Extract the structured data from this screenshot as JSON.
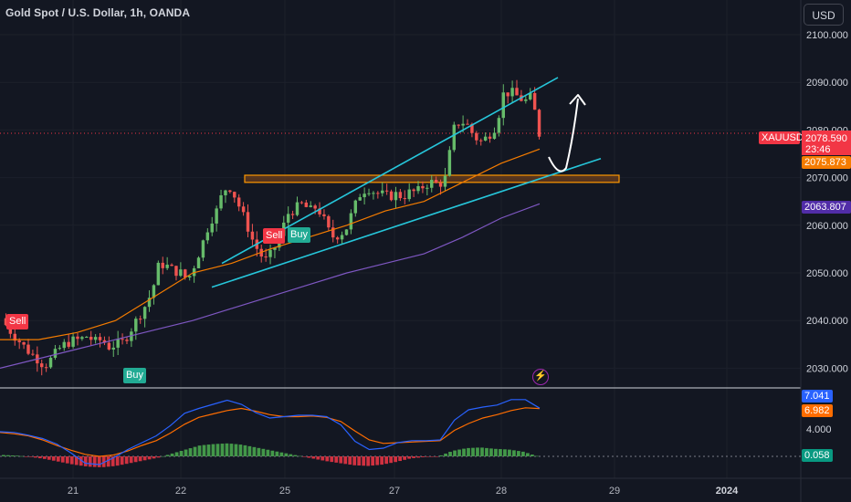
{
  "header": {
    "title": "Gold Spot / U.S. Dollar, 1h, OANDA",
    "currency_button": "USD"
  },
  "colors": {
    "background": "#131722",
    "up": "#66bb6a",
    "down": "#ef5350",
    "channel": "#26c6da",
    "zone_fill": "#8a4a1a",
    "zone_border": "#ff9800",
    "ema_fast": "#f57c00",
    "ema_slow": "#7e57c2",
    "macd_line": "#2962ff",
    "signal_line": "#ff6d00",
    "hist_up": "#4caf50",
    "hist_down": "#f23645"
  },
  "signals": [
    {
      "label": "Sell",
      "type": "sell"
    },
    {
      "label": "Buy",
      "type": "buy"
    },
    {
      "label": "Sell",
      "type": "sell"
    },
    {
      "label": "Buy",
      "type": "buy"
    }
  ],
  "chart_data": [
    {
      "type": "candlestick",
      "title": "Gold Spot / U.S. Dollar, 1h, OANDA",
      "symbol": "XAUUSD",
      "x_ticks": [
        "21",
        "22",
        "25",
        "27",
        "28",
        "29",
        "2024"
      ],
      "y_ticks": [
        "2100.000",
        "2090.000",
        "2080.000",
        "2070.000",
        "2060.000",
        "2050.000",
        "2040.000",
        "2030.000"
      ],
      "ylim": [
        2025.5,
        2105
      ],
      "last_price": "2078.590",
      "countdown": "23:46",
      "ema_fast_value": "2075.873",
      "ema_slow_value": "2063.807",
      "close_points": [
        2040.5,
        2038.2,
        2036.5,
        2034.8,
        2033.2,
        2032.0,
        2030.5,
        2032.0,
        2034.0,
        2035.2,
        2035.8,
        2036.0,
        2036.8,
        2035.5,
        2036.0,
        2034.5,
        2035.0,
        2035.5,
        2038.0,
        2040.5,
        2043.0,
        2046.0,
        2052.0,
        2051.5,
        2050.5,
        2050.0,
        2048.5,
        2052.0,
        2056.0,
        2060.5,
        2063.0,
        2067.5,
        2068.0,
        2064.5,
        2061.0,
        2057.0,
        2054.0,
        2052.5,
        2055.0,
        2058.5,
        2062.5,
        2063.5,
        2064.5,
        2063.0,
        2064.0,
        2061.0,
        2057.5,
        2058.0,
        2059.0,
        2063.0,
        2066.5,
        2068.0,
        2067.0,
        2066.5,
        2066.0,
        2066.5,
        2066.0,
        2067.0,
        2067.0,
        2068.5,
        2069.0,
        2068.5,
        2070.0,
        2080.0,
        2082.0,
        2081.0,
        2078.5,
        2077.5,
        2079.0,
        2081.0,
        2087.5,
        2088.0,
        2087.0,
        2086.0,
        2087.0,
        2078.6
      ],
      "ema_fast": [
        2036.0,
        2036.0,
        2037.5,
        2040.0,
        2045.0,
        2050.0,
        2052.0,
        2055.0,
        2057.5,
        2060.0,
        2063.0,
        2065.0,
        2069.0,
        2073.0,
        2076.0
      ],
      "ema_slow": [
        2030.0,
        2032.0,
        2034.0,
        2036.0,
        2038.0,
        2040.0,
        2042.5,
        2045.0,
        2047.5,
        2050.0,
        2052.0,
        2054.0,
        2057.5,
        2061.5,
        2064.5
      ],
      "channel_upper": [
        [
          2052.0,
          2091.0
        ]
      ],
      "channel_lower": [
        [
          2047.0,
          2074.0
        ]
      ],
      "zone": [
        2069.0,
        2070.5
      ],
      "projection": "drop to channel support then rise toward 2089"
    },
    {
      "type": "macd",
      "macd_value": "7.041",
      "signal_value": "6.982",
      "hist_value": "0.058",
      "y_ticks": [
        "4.000"
      ],
      "macd": [
        3.6,
        3.5,
        3.1,
        2.6,
        1.8,
        0.5,
        -1.0,
        -1.2,
        -0.2,
        1.0,
        2.0,
        3.0,
        4.5,
        6.3,
        7.0,
        7.6,
        8.2,
        7.6,
        6.4,
        5.6,
        5.8,
        6.0,
        6.0,
        5.8,
        4.6,
        2.2,
        1.0,
        1.2,
        2.0,
        2.3,
        2.3,
        2.4,
        5.3,
        6.8,
        7.2,
        7.5,
        8.3,
        8.3,
        7.04
      ],
      "signal": [
        3.5,
        3.3,
        3.0,
        2.4,
        1.6,
        0.9,
        0.3,
        0.0,
        0.2,
        0.8,
        1.6,
        2.3,
        3.4,
        4.7,
        5.7,
        6.2,
        6.7,
        7.0,
        6.6,
        6.1,
        5.8,
        5.8,
        5.9,
        5.7,
        5.1,
        3.7,
        2.4,
        1.9,
        2.0,
        2.1,
        2.2,
        2.3,
        3.8,
        4.8,
        5.6,
        6.1,
        6.7,
        7.1,
        6.98
      ],
      "histogram": [
        0.2,
        0.1,
        -0.1,
        -0.4,
        -0.8,
        -1.2,
        -1.5,
        -1.6,
        -1.4,
        -1.0,
        -0.6,
        -0.2,
        0.4,
        1.0,
        1.6,
        1.8,
        1.9,
        1.7,
        1.3,
        0.9,
        0.5,
        0.1,
        -0.3,
        -0.7,
        -1.0,
        -1.3,
        -1.4,
        -1.2,
        -0.8,
        -0.3,
        -0.1,
        0.0,
        0.8,
        1.2,
        1.3,
        1.1,
        1.0,
        0.7,
        0.06
      ]
    }
  ]
}
